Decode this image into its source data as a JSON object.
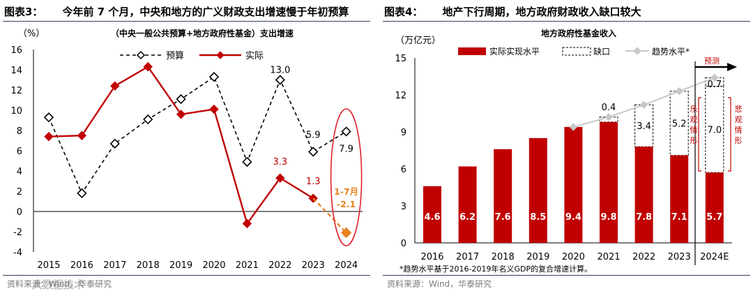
{
  "left": {
    "figure_title": "图表3：",
    "figure_caption": "今年前 7 个月，中央和地方的广义财政支出增速慢于年初预算",
    "source_text": "资料来源：Wind，华泰研究",
    "watermark_text": "大数据技术"
  },
  "right": {
    "figure_title": "图表4：",
    "figure_caption": "地产下行周期，地方政府财政收入缺口较大",
    "source_text": "资料来源：Wind，华泰研究"
  },
  "colors": {
    "red": "#c00000",
    "orange": "#e8821e",
    "grey": "#c8c8c8",
    "axis": "#000000",
    "rule": "#2f3f5f"
  },
  "chart_data": [
    {
      "type": "line",
      "title": "（中央一般公共预算+地方政府性基金）支出增速",
      "ylabel": "（%）",
      "ylim": [
        -4,
        16
      ],
      "yticks": [
        -4,
        -2,
        0,
        2,
        4,
        6,
        8,
        10,
        12,
        14,
        16
      ],
      "categories": [
        "2015",
        "2016",
        "2017",
        "2018",
        "2019",
        "2020",
        "2021",
        "2022",
        "2023",
        "2024"
      ],
      "series": [
        {
          "name": "预算",
          "style": "dashed",
          "marker": "diamond-open",
          "values": [
            9.3,
            1.8,
            6.7,
            9.1,
            11.1,
            13.3,
            4.9,
            13.0,
            5.9,
            7.9
          ]
        },
        {
          "name": "实际",
          "style": "solid",
          "marker": "diamond-filled",
          "values": [
            7.4,
            7.5,
            12.4,
            14.3,
            9.6,
            10.1,
            -1.2,
            3.3,
            1.3,
            null
          ]
        }
      ],
      "extra_point": {
        "category": "2024",
        "value": -2.1,
        "label": "1-7月",
        "value_label": "-2.1"
      },
      "data_labels": [
        {
          "series": "预算",
          "category": "2022",
          "text": "13.0",
          "color": "#000000"
        },
        {
          "series": "预算",
          "category": "2023",
          "text": "5.9",
          "color": "#000000"
        },
        {
          "series": "预算",
          "category": "2024",
          "text": "7.9",
          "color": "#000000"
        },
        {
          "series": "实际",
          "category": "2022",
          "text": "3.3",
          "color": "#c00000"
        },
        {
          "series": "实际",
          "category": "2023",
          "text": "1.3",
          "color": "#c00000"
        }
      ],
      "legend_position": "top"
    },
    {
      "type": "bar",
      "title": "地方政府性基金收入",
      "ylabel": "（万亿元）",
      "ylim": [
        0,
        15
      ],
      "yticks": [
        0,
        3,
        6,
        9,
        12,
        15
      ],
      "categories": [
        "2016",
        "2017",
        "2018",
        "2019",
        "2020",
        "2021",
        "2022",
        "2023",
        "2024E"
      ],
      "series": [
        {
          "name": "实际实现水平",
          "kind": "bar-filled",
          "values": [
            4.6,
            6.2,
            7.6,
            8.5,
            9.4,
            9.8,
            7.8,
            7.1,
            5.7
          ]
        },
        {
          "name": "缺口",
          "kind": "bar-dashed-stacked",
          "values": [
            null,
            null,
            null,
            null,
            null,
            0.4,
            3.4,
            5.2,
            7.0
          ]
        },
        {
          "name": "趋势水平*",
          "kind": "line",
          "values": [
            null,
            null,
            null,
            null,
            9.4,
            10.2,
            11.2,
            12.3,
            13.4
          ]
        }
      ],
      "value_labels": [
        "4.6",
        "6.2",
        "7.6",
        "8.5",
        "9.4",
        "9.8",
        "7.8",
        "7.1",
        "5.7"
      ],
      "gap_labels": [
        "",
        "",
        "",
        "",
        "",
        "0.4",
        "3.4",
        "5.2",
        "7.0"
      ],
      "extra_labels": {
        "top_gap_2024": "0.7",
        "forecast": "预测",
        "optimistic": "乐观情形",
        "pessimistic": "悲观情形"
      },
      "footnote": "*趋势水平基于2016-2019年名义GDP的复合增速计算。",
      "legend_position": "top"
    }
  ]
}
